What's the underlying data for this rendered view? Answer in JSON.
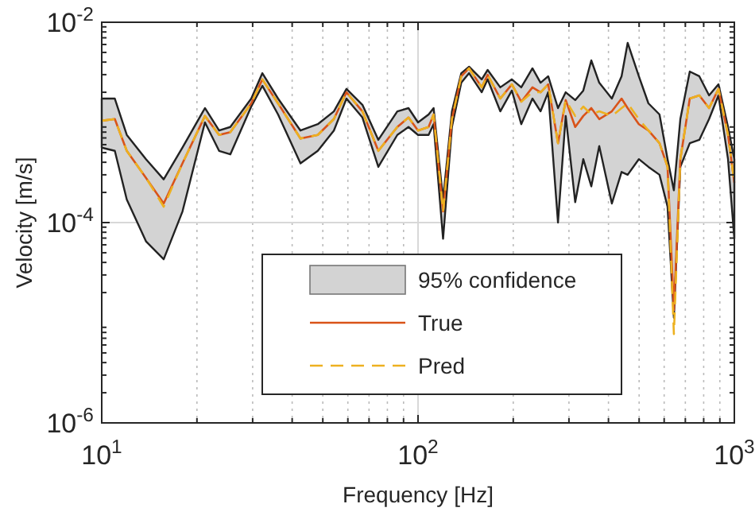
{
  "chart_data": {
    "type": "line",
    "xlabel": "Frequency [Hz]",
    "ylabel": "Velocity [m/s]",
    "log": "xy",
    "grid": true,
    "legend": "bottom",
    "annotations": [
      "95% confidence"
    ],
    "xlim": [
      10,
      1000
    ],
    "xticks": [
      {
        "value": 10,
        "label": "10$^{1}$"
      },
      {
        "value": 100,
        "label": "10$^{2}$"
      },
      {
        "value": 1000,
        "label": "10$^{3}$"
      }
    ],
    "ylim": [
      1e-06,
      0.01
    ],
    "yticks": [
      {
        "value": 1e-06,
        "label": "10$^{-6}$"
      },
      {
        "value": 0.0001,
        "label": "10$^{-4}$"
      },
      {
        "value": 0.01,
        "label": "10$^{-2}$"
      }
    ],
    "x": [
      10,
      11,
      12,
      13.8,
      15.7,
      18,
      21.2,
      23.5,
      25.5,
      29.7,
      32.2,
      36.1,
      42.5,
      48.2,
      54.2,
      59.4,
      66.7,
      74.9,
      86,
      93.3,
      100,
      108,
      112,
      120,
      128,
      137,
      145,
      159,
      166,
      182,
      198,
      212,
      230,
      244,
      258,
      277,
      293,
      314,
      333,
      353,
      374,
      410,
      440,
      460,
      499,
      535,
      580,
      615,
      644,
      675,
      723,
      775,
      832,
      891,
      955,
      1000
    ],
    "series": [
      {
        "name": "True",
        "type": "line",
        "color": "#d95319",
        "line_style": "solid",
        "values": [
          0.00104,
          0.00108,
          0.00052,
          0.00028,
          0.000155,
          0.00039,
          0.00116,
          0.00075,
          0.0008,
          0.00155,
          0.00269,
          0.00155,
          0.00069,
          0.00075,
          0.00108,
          0.002,
          0.00129,
          0.00052,
          0.0009,
          0.00112,
          0.00083,
          0.0009,
          0.0012,
          0.000129,
          0.00108,
          0.00289,
          0.00347,
          0.00224,
          0.00299,
          0.00173,
          0.0024,
          0.00161,
          0.00224,
          0.002,
          0.0024,
          0.00062,
          0.00167,
          0.0009,
          0.00116,
          0.00139,
          0.00108,
          0.00129,
          0.00173,
          0.00139,
          0.00096,
          0.00083,
          0.00062,
          0.00036,
          1.34e-05,
          0.00043,
          0.00173,
          0.00186,
          0.00139,
          0.00216,
          0.00075,
          0.00025
        ],
        "lower": [
          0.00056,
          0.00052,
          0.00017,
          6.5e-05,
          4.3e-05,
          0.000129,
          0.001,
          0.00052,
          0.00048,
          0.00144,
          0.00232,
          0.0012,
          0.00039,
          0.00052,
          0.00083,
          0.00173,
          0.00112,
          0.00036,
          0.00075,
          0.0009,
          0.00075,
          0.00075,
          0.00096,
          6.9e-05,
          0.0009,
          0.00249,
          0.0031,
          0.002,
          0.00269,
          0.00129,
          0.00208,
          0.00096,
          0.00173,
          0.00129,
          0.002,
          0.0001,
          0.00116,
          0.00016,
          0.00043,
          0.00023,
          0.00058,
          0.000155,
          0.00032,
          0.0003,
          0.00043,
          0.00036,
          0.0003,
          0.000144,
          1.12e-05,
          0.00036,
          0.00062,
          0.00067,
          0.00108,
          0.00186,
          0.00043,
          6.9e-05
        ],
        "upper": [
          0.00173,
          0.00173,
          0.00075,
          0.00043,
          0.00027,
          0.00056,
          0.00139,
          0.00083,
          0.0009,
          0.00173,
          0.0031,
          0.00173,
          0.00083,
          0.00096,
          0.00129,
          0.00216,
          0.0015,
          0.00067,
          0.00129,
          0.00139,
          0.001,
          0.0012,
          0.00139,
          0.00017,
          0.00129,
          0.0031,
          0.0036,
          0.00269,
          0.00334,
          0.00224,
          0.00269,
          0.00224,
          0.00347,
          0.00249,
          0.00289,
          0.00139,
          0.002,
          0.00167,
          0.00208,
          0.00416,
          0.00249,
          0.00173,
          0.00289,
          0.00622,
          0.00289,
          0.00155,
          0.0012,
          0.00043,
          0.00021,
          0.00108,
          0.00322,
          0.00289,
          0.00186,
          0.0024,
          0.0009,
          0.00043
        ]
      },
      {
        "name": "Pred",
        "type": "line",
        "color": "#edb120",
        "line_style": "dashed",
        "values": [
          0.00104,
          0.00108,
          0.00052,
          0.00028,
          0.000144,
          0.00039,
          0.00116,
          0.00075,
          0.0008,
          0.00155,
          0.00269,
          0.00155,
          0.00069,
          0.00075,
          0.00108,
          0.002,
          0.00129,
          0.00052,
          0.0009,
          0.00112,
          0.00083,
          0.0009,
          0.0012,
          0.000129,
          0.00108,
          0.00289,
          0.00347,
          0.00224,
          0.00299,
          0.00173,
          0.0024,
          0.00161,
          0.002,
          0.002,
          0.0024,
          0.00062,
          0.00167,
          0.00116,
          0.00144,
          0.0012,
          0.00129,
          0.00116,
          0.00139,
          0.00155,
          0.00108,
          0.00083,
          0.00062,
          0.00036,
          7.7e-06,
          0.00043,
          0.00173,
          0.00186,
          0.00139,
          0.00216,
          0.00075,
          0.00025
        ]
      }
    ]
  }
}
